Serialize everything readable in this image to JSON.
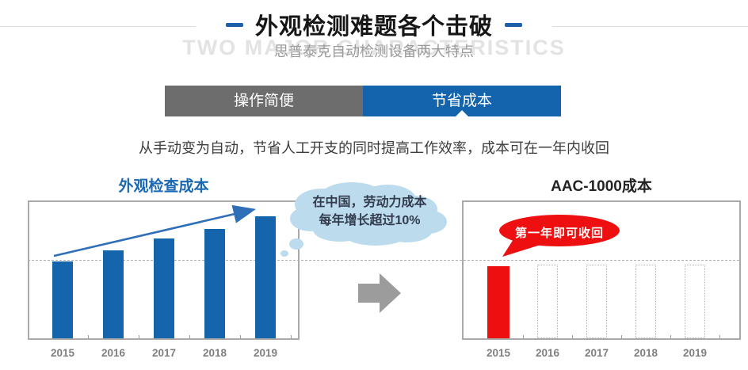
{
  "header": {
    "title": "外观检测难题各个击破",
    "watermark": "TWO MAJOR CHARACTERISTICS",
    "subtitle": "思普泰克自动检测设备两大特点"
  },
  "tabs": {
    "items": [
      {
        "label": "操作简便",
        "active": false
      },
      {
        "label": "节省成本",
        "active": true
      }
    ]
  },
  "description": "从手动变为自动，节省人工开支的同时提高工作效率，成本可在一年内收回",
  "cloud_callout": {
    "line1": "在中国，劳动力成本",
    "line2": "每年增长超过10%"
  },
  "bubble_callout": {
    "text": "第一年即可收回"
  },
  "chart_data": [
    {
      "type": "bar",
      "title": "外观检查成本",
      "categories": [
        "2015",
        "2016",
        "2017",
        "2018",
        "2019"
      ],
      "values": [
        100,
        114,
        130,
        142,
        159
      ],
      "value_note": "relative manual-inspection cost, 2015 = 100 (no numeric y-axis shown)",
      "bar_color": "#1565ad",
      "xlabel": "",
      "ylabel": "",
      "legend": "none",
      "grid": "single dashed horizontal reference line at 2015 cost level spanning both charts",
      "annotations": [
        {
          "type": "trend-arrow",
          "meaning": "cost rising year over year"
        },
        {
          "type": "thought-cloud",
          "text": "在中国，劳动力成本每年增长超过10%"
        }
      ]
    },
    {
      "type": "bar",
      "title": "AAC-1000成本",
      "categories": [
        "2015",
        "2016",
        "2017",
        "2018",
        "2019"
      ],
      "values": [
        94,
        0,
        0,
        0,
        0
      ],
      "value_note": "one-time equipment cost in year 1 only; later years shown as empty dotted outlines",
      "bar_color": "#ee1010",
      "ghost_bars": {
        "categories": [
          "2016",
          "2017",
          "2018",
          "2019"
        ],
        "value": 94,
        "style": "dotted-outline"
      },
      "xlabel": "",
      "ylabel": "",
      "legend": "none",
      "annotations": [
        {
          "type": "speech-bubble",
          "text": "第一年即可收回"
        }
      ]
    }
  ],
  "colors": {
    "brand_blue": "#1464ad",
    "bar_blue": "#1565ad",
    "chart_title_blue": "#1a67b2",
    "tab_inactive_gray": "#6d6d6d",
    "accent_red": "#ee1010",
    "cloud_blue": "#bcdcee",
    "arrow_gray": "#9c9c9c",
    "watermark_gray": "#e3e3e3",
    "year_label_gray": "#7f7f7f"
  }
}
